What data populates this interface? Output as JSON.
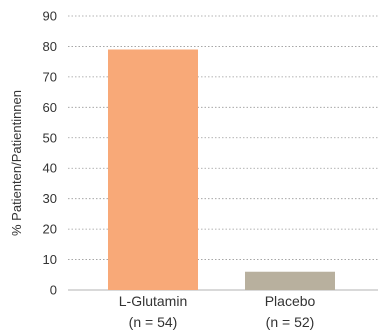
{
  "chart_data": {
    "type": "bar",
    "title": "",
    "xlabel": "",
    "ylabel": "% Patienten/Patientinnen",
    "ylim": [
      0,
      90
    ],
    "yticks": [
      0,
      10,
      20,
      30,
      40,
      50,
      60,
      70,
      80,
      90
    ],
    "grid": true,
    "categories": [
      {
        "label": "L-Glutamin",
        "sublabel": "(n = 54)"
      },
      {
        "label": "Placebo",
        "sublabel": "(n = 52)"
      }
    ],
    "values": [
      79,
      6
    ],
    "colors": [
      "#f8a978",
      "#b8b09e"
    ]
  }
}
